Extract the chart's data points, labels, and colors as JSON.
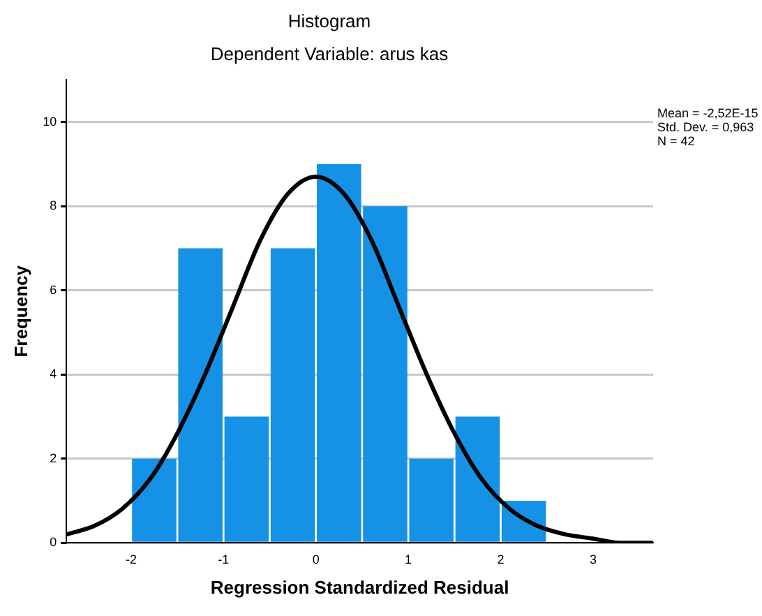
{
  "chart_data": {
    "type": "histogram",
    "title": "Histogram",
    "subtitle": "Dependent Variable: arus kas",
    "xlabel": "Regression Standardized Residual",
    "ylabel": "Frequency",
    "bins": [
      -2,
      -1.5,
      -1,
      -0.5,
      0,
      0.5,
      1,
      1.5,
      2,
      2.5
    ],
    "values": [
      2,
      7,
      3,
      7,
      9,
      8,
      2,
      3,
      1
    ],
    "color": "#1591e6",
    "series": [
      {
        "type": "line",
        "color": "#000000",
        "x": [
          -2.7,
          -2.4,
          -2.1,
          -1.8,
          -1.5,
          -1.2,
          -0.9,
          -0.6,
          -0.3,
          0,
          0.3,
          0.6,
          0.9,
          1.2,
          1.5,
          1.8,
          2.1,
          2.4,
          2.7,
          3.0,
          3.3,
          3.65
        ],
        "values": [
          0.2,
          0.4,
          0.8,
          1.5,
          2.6,
          4.0,
          5.6,
          7.2,
          8.3,
          8.7,
          8.3,
          7.2,
          5.6,
          4.0,
          2.6,
          1.5,
          0.8,
          0.4,
          0.2,
          0.1,
          0.0,
          0.0
        ]
      }
    ],
    "xlim": [
      -2.7,
      3.65
    ],
    "xticks": [
      -2,
      -1,
      0,
      1,
      2,
      3
    ],
    "ylim": [
      0,
      11
    ],
    "yticks": [
      0,
      2,
      4,
      6,
      8,
      10
    ],
    "grid": "y",
    "annotations": [
      "Mean = -2,52E-15",
      "Std. Dev. = 0,963",
      "N = 42"
    ]
  }
}
